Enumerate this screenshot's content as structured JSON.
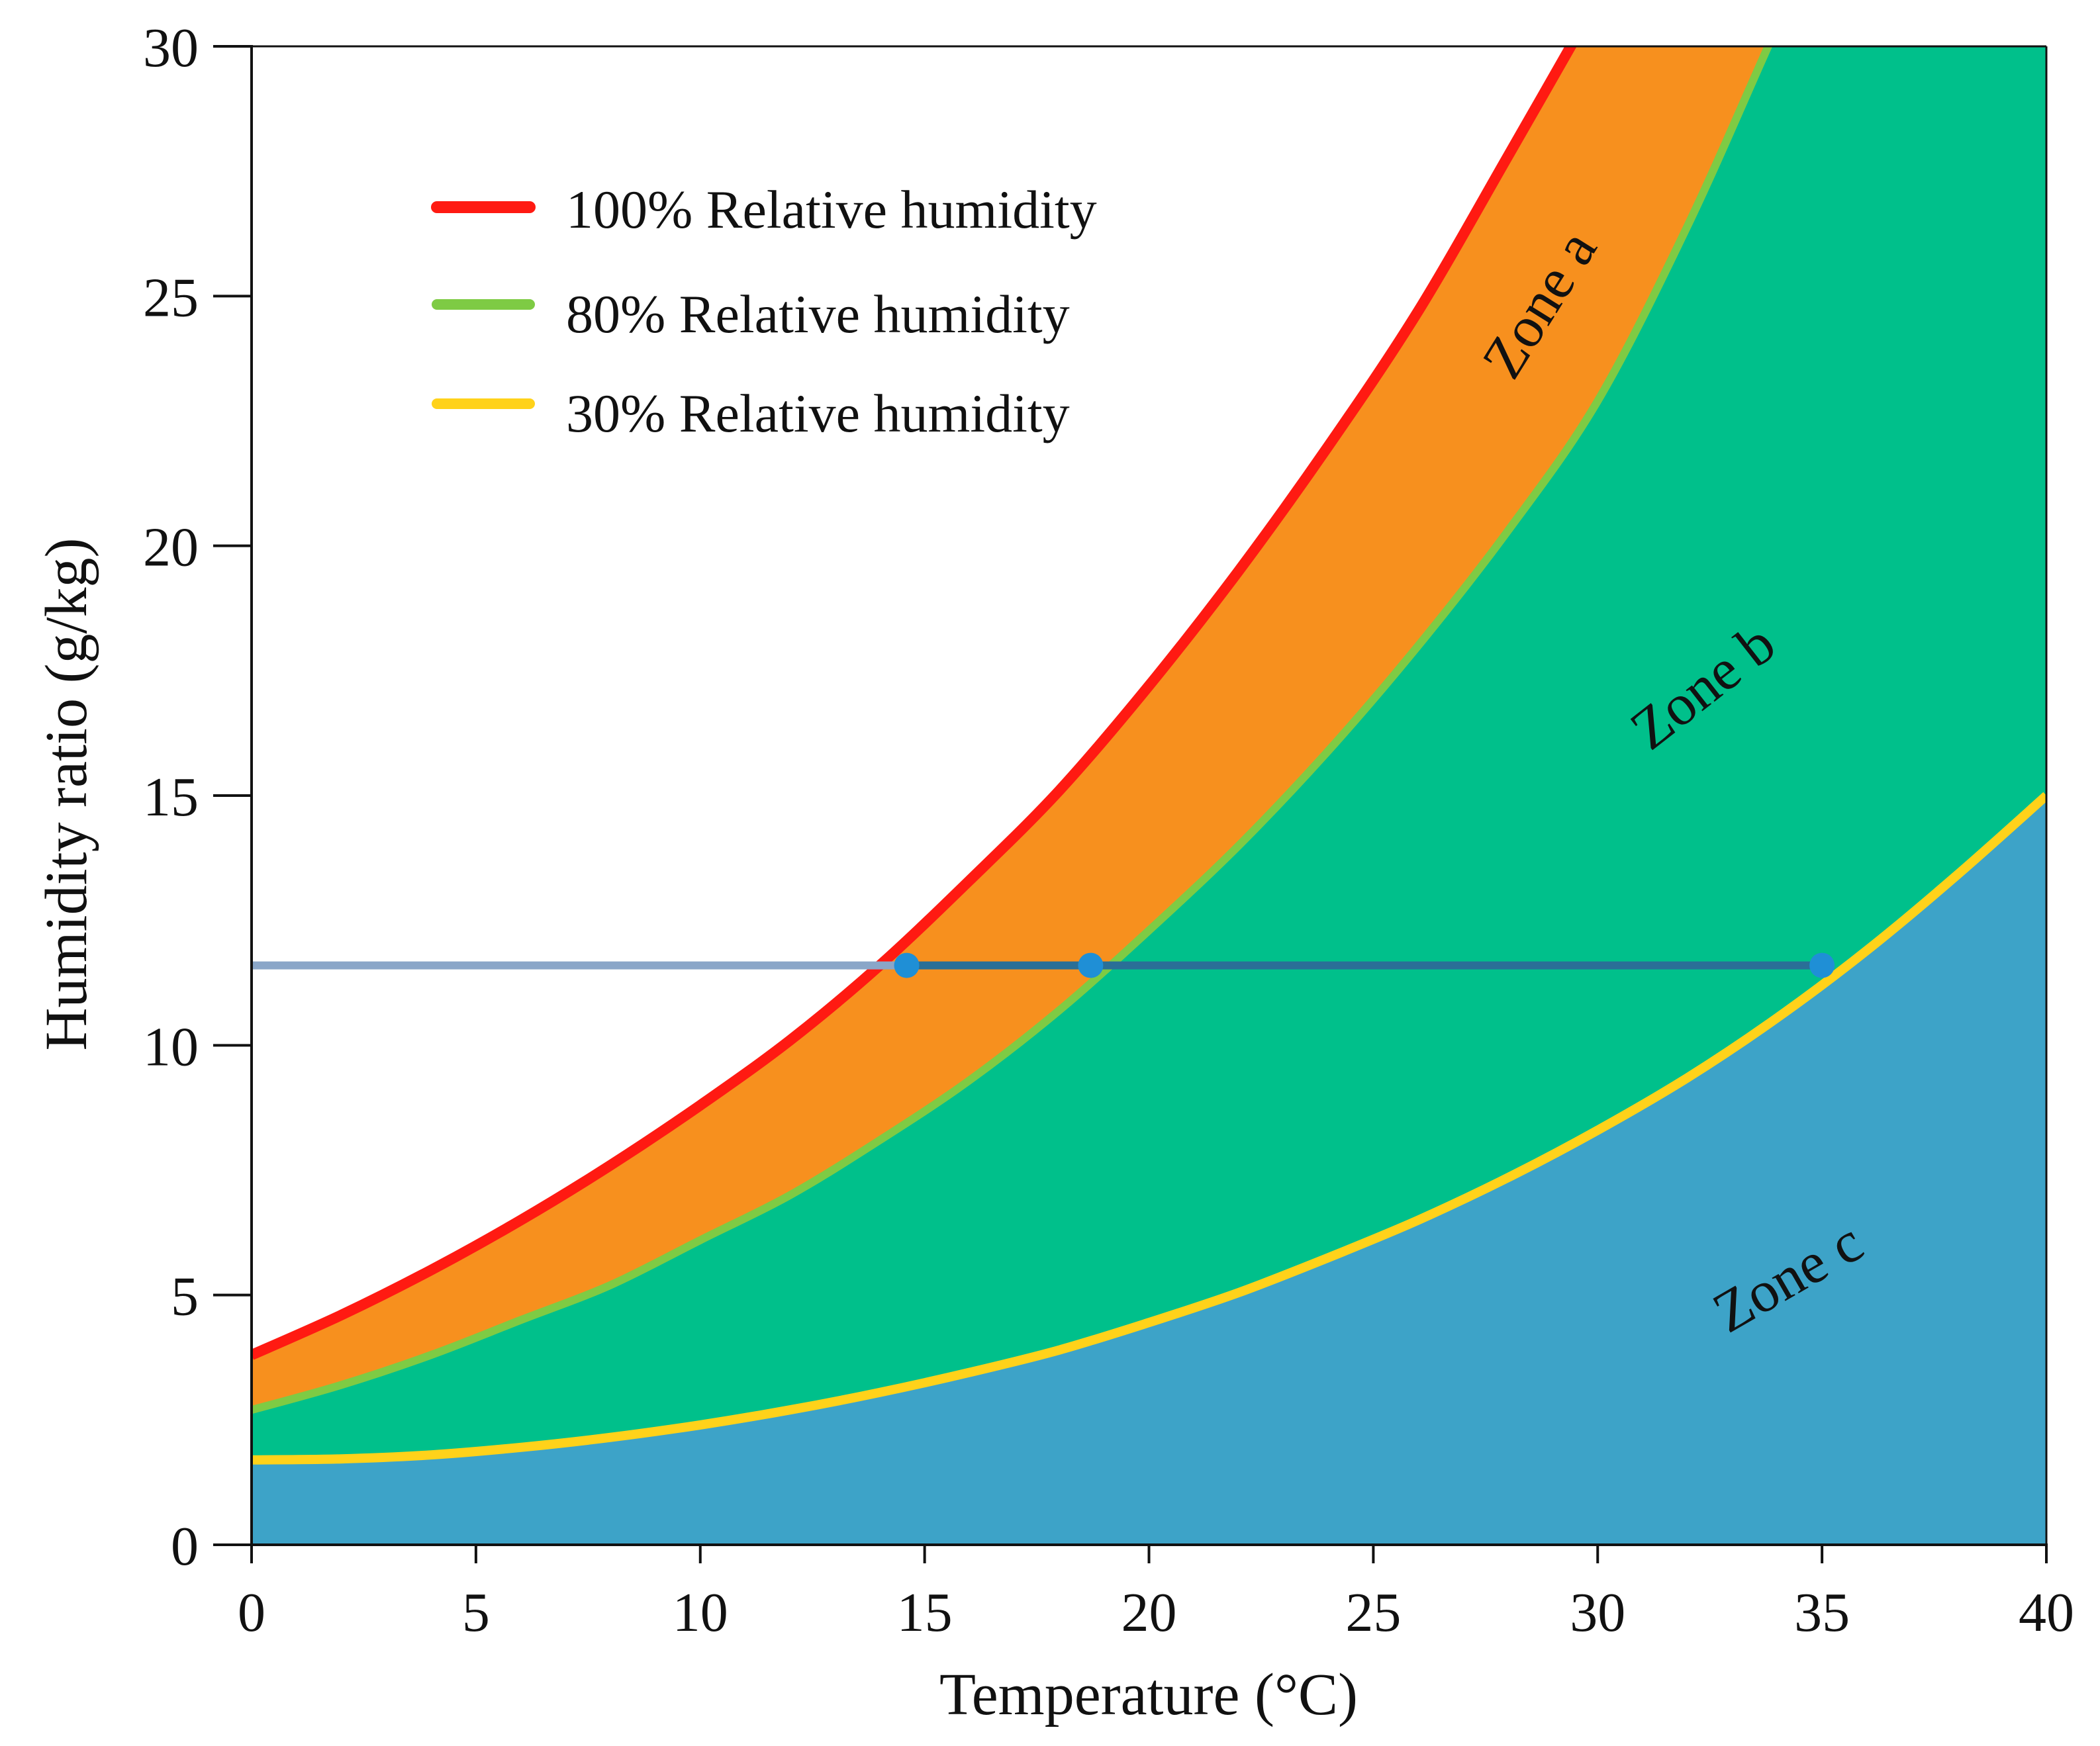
{
  "chart_data": {
    "type": "area",
    "title": "",
    "xlabel": "Temperature (°C)",
    "ylabel": "Humidity ratio (g/kg)",
    "xlim": [
      0,
      40
    ],
    "ylim": [
      0,
      30
    ],
    "xticks": [
      0,
      5,
      10,
      15,
      20,
      25,
      30,
      35,
      40
    ],
    "yticks": [
      0,
      5,
      10,
      15,
      20,
      25,
      30
    ],
    "xtick_labels": [
      "0",
      "5",
      "10",
      "15",
      "20",
      "25",
      "30",
      "35",
      "40"
    ],
    "ytick_labels": [
      "0",
      "5",
      "10",
      "15",
      "20",
      "25",
      "30"
    ],
    "grid": false,
    "legend_position": "top-left",
    "series": [
      {
        "name": "100% Relative humidity",
        "color": "#ff1a12",
        "x": [
          0,
          2,
          4,
          6,
          8,
          10,
          12,
          14,
          16,
          18,
          20,
          22,
          24,
          26,
          28,
          29.4
        ],
        "values": [
          3.8,
          4.6,
          5.5,
          6.5,
          7.6,
          8.8,
          10.1,
          11.6,
          13.3,
          15.1,
          17.2,
          19.5,
          22.0,
          24.7,
          27.8,
          30.0
        ]
      },
      {
        "name": "80% Relative humidity",
        "color": "#7ecb44",
        "x": [
          0,
          2,
          4,
          6,
          8,
          10,
          12,
          14,
          16,
          18,
          20,
          22,
          24,
          26,
          28,
          30,
          32,
          33.8
        ],
        "values": [
          2.7,
          3.2,
          3.8,
          4.5,
          5.2,
          6.1,
          7.0,
          8.1,
          9.3,
          10.7,
          12.3,
          14.0,
          15.9,
          18.0,
          20.3,
          22.9,
          26.4,
          30.0
        ]
      },
      {
        "name": "30% Relative humidity",
        "color": "#ffd21a",
        "x": [
          0,
          2,
          4,
          6,
          8,
          10,
          12,
          14,
          16,
          18,
          20,
          22,
          24,
          26,
          28,
          30,
          32,
          34,
          36,
          38,
          40
        ],
        "values": [
          1.7,
          1.72,
          1.8,
          1.95,
          2.15,
          2.4,
          2.7,
          3.05,
          3.45,
          3.9,
          4.45,
          5.05,
          5.75,
          6.5,
          7.35,
          8.3,
          9.35,
          10.55,
          11.9,
          13.4,
          15.0
        ]
      }
    ],
    "zones": [
      {
        "label": "Zone a",
        "color": "#f7901e"
      },
      {
        "label": "Zone b",
        "color": "#00c08b"
      },
      {
        "label": "Zone c",
        "color": "#3da3c8"
      }
    ],
    "constant_humidity_line": {
      "y": 11.6,
      "x_start": 0,
      "x_end": 35,
      "color_left": "#8aa6c8",
      "color_right": "#2a6f97",
      "points": [
        {
          "x": 14.6,
          "y": 11.6
        },
        {
          "x": 18.7,
          "y": 11.6
        },
        {
          "x": 35.0,
          "y": 11.6
        }
      ],
      "point_color": "#1f8fd6"
    }
  }
}
